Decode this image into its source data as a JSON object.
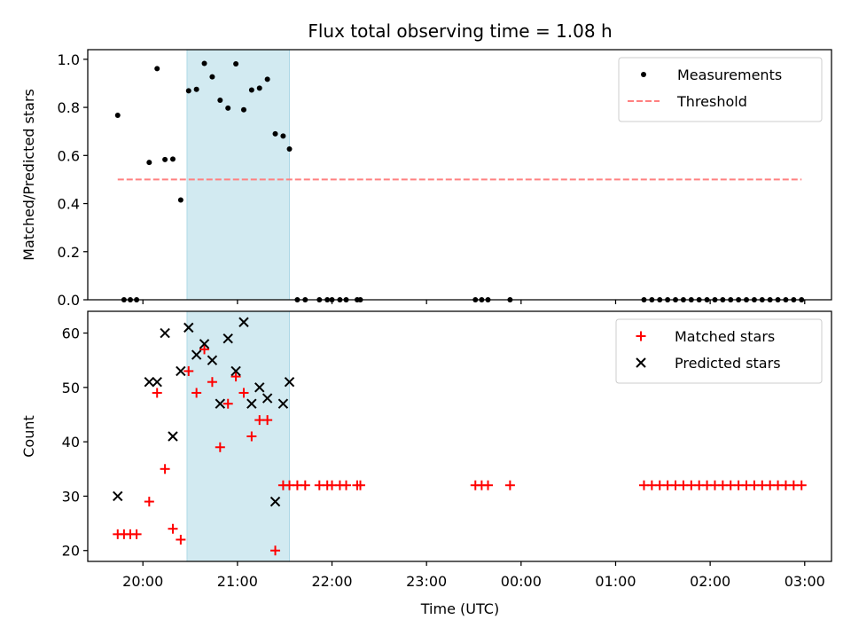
{
  "chart_data": {
    "title": "Flux total observing time = 1.08 h",
    "xlabel": "Time (UTC)",
    "x_ticks": [
      "20:00",
      "21:00",
      "22:00",
      "23:00",
      "00:00",
      "01:00",
      "02:00",
      "03:00"
    ],
    "x_range": [
      "19:25",
      "03:17"
    ],
    "observing_window": [
      "20:28",
      "21:33"
    ],
    "panels": [
      {
        "type": "scatter",
        "ylabel": "Matched/Predicted stars",
        "ylim": [
          0,
          1.04
        ],
        "y_ticks": [
          "0.0",
          "0.2",
          "0.4",
          "0.6",
          "0.8",
          "1.0"
        ],
        "legend_position": "top-right",
        "series": [
          {
            "name": "Measurements",
            "marker": "dot",
            "color": "#000000",
            "points": [
              [
                "19:44",
                0.767
              ],
              [
                "19:48",
                0
              ],
              [
                "19:52",
                0
              ],
              [
                "19:56",
                0
              ],
              [
                "20:04",
                0.571
              ],
              [
                "20:09",
                0.961
              ],
              [
                "20:14",
                0.583
              ],
              [
                "20:19",
                0.585
              ],
              [
                "20:24",
                0.415
              ],
              [
                "20:29",
                0.869
              ],
              [
                "20:34",
                0.875
              ],
              [
                "20:39",
                0.983
              ],
              [
                "20:44",
                0.927
              ],
              [
                "20:49",
                0.83
              ],
              [
                "20:54",
                0.797
              ],
              [
                "20:59",
                0.981
              ],
              [
                "21:04",
                0.79
              ],
              [
                "21:09",
                0.872
              ],
              [
                "21:14",
                0.88
              ],
              [
                "21:19",
                0.917
              ],
              [
                "21:24",
                0.69
              ],
              [
                "21:29",
                0.681
              ],
              [
                "21:33",
                0.627
              ],
              [
                "21:38",
                0
              ],
              [
                "21:43",
                0
              ],
              [
                "21:52",
                0
              ],
              [
                "21:57",
                0
              ],
              [
                "22:00",
                0
              ],
              [
                "22:05",
                0
              ],
              [
                "22:09",
                0
              ],
              [
                "22:16",
                0
              ],
              [
                "22:18",
                0
              ],
              [
                "23:31",
                0
              ],
              [
                "23:35",
                0
              ],
              [
                "23:39",
                0
              ],
              [
                "23:53",
                0
              ],
              [
                "01:18",
                0
              ],
              [
                "01:23",
                0
              ],
              [
                "01:28",
                0
              ],
              [
                "01:33",
                0
              ],
              [
                "01:38",
                0
              ],
              [
                "01:43",
                0
              ],
              [
                "01:48",
                0
              ],
              [
                "01:53",
                0
              ],
              [
                "01:58",
                0
              ],
              [
                "02:03",
                0
              ],
              [
                "02:08",
                0
              ],
              [
                "02:13",
                0
              ],
              [
                "02:18",
                0
              ],
              [
                "02:23",
                0
              ],
              [
                "02:28",
                0
              ],
              [
                "02:33",
                0
              ],
              [
                "02:38",
                0
              ],
              [
                "02:43",
                0
              ],
              [
                "02:48",
                0
              ],
              [
                "02:53",
                0
              ],
              [
                "02:58",
                0
              ]
            ]
          },
          {
            "name": "Threshold",
            "style": "dashed-line",
            "color": "#ff8080",
            "points": [
              [
                "19:44",
                0.5
              ],
              [
                "02:58",
                0.5
              ]
            ]
          }
        ]
      },
      {
        "type": "scatter",
        "ylabel": "Count",
        "ylim": [
          18,
          64
        ],
        "y_ticks": [
          "20",
          "30",
          "40",
          "50",
          "60"
        ],
        "legend_position": "top-right",
        "series": [
          {
            "name": "Matched stars",
            "marker": "plus",
            "color": "#ff0000",
            "points": [
              [
                "19:44",
                23
              ],
              [
                "19:48",
                23
              ],
              [
                "19:52",
                23
              ],
              [
                "19:56",
                23
              ],
              [
                "20:04",
                29
              ],
              [
                "20:09",
                49
              ],
              [
                "20:14",
                35
              ],
              [
                "20:19",
                24
              ],
              [
                "20:24",
                22
              ],
              [
                "20:29",
                53
              ],
              [
                "20:34",
                49
              ],
              [
                "20:39",
                57
              ],
              [
                "20:44",
                51
              ],
              [
                "20:49",
                39
              ],
              [
                "20:54",
                47
              ],
              [
                "20:59",
                52
              ],
              [
                "21:04",
                49
              ],
              [
                "21:09",
                41
              ],
              [
                "21:14",
                44
              ],
              [
                "21:19",
                44
              ],
              [
                "21:24",
                20
              ],
              [
                "21:29",
                32
              ],
              [
                "21:33",
                32
              ],
              [
                "21:38",
                32
              ],
              [
                "21:43",
                32
              ],
              [
                "21:52",
                32
              ],
              [
                "21:57",
                32
              ],
              [
                "22:00",
                32
              ],
              [
                "22:05",
                32
              ],
              [
                "22:09",
                32
              ],
              [
                "22:16",
                32
              ],
              [
                "22:18",
                32
              ],
              [
                "23:31",
                32
              ],
              [
                "23:35",
                32
              ],
              [
                "23:39",
                32
              ],
              [
                "23:53",
                32
              ],
              [
                "01:18",
                32
              ],
              [
                "01:23",
                32
              ],
              [
                "01:28",
                32
              ],
              [
                "01:33",
                32
              ],
              [
                "01:38",
                32
              ],
              [
                "01:43",
                32
              ],
              [
                "01:48",
                32
              ],
              [
                "01:53",
                32
              ],
              [
                "01:58",
                32
              ],
              [
                "02:03",
                32
              ],
              [
                "02:08",
                32
              ],
              [
                "02:13",
                32
              ],
              [
                "02:18",
                32
              ],
              [
                "02:23",
                32
              ],
              [
                "02:28",
                32
              ],
              [
                "02:33",
                32
              ],
              [
                "02:38",
                32
              ],
              [
                "02:43",
                32
              ],
              [
                "02:48",
                32
              ],
              [
                "02:53",
                32
              ],
              [
                "02:58",
                32
              ]
            ]
          },
          {
            "name": "Predicted stars",
            "marker": "x",
            "color": "#000000",
            "points": [
              [
                "19:44",
                30
              ],
              [
                "20:04",
                51
              ],
              [
                "20:09",
                51
              ],
              [
                "20:14",
                60
              ],
              [
                "20:19",
                41
              ],
              [
                "20:24",
                53
              ],
              [
                "20:29",
                61
              ],
              [
                "20:34",
                56
              ],
              [
                "20:39",
                58
              ],
              [
                "20:44",
                55
              ],
              [
                "20:49",
                47
              ],
              [
                "20:54",
                59
              ],
              [
                "20:59",
                53
              ],
              [
                "21:04",
                62
              ],
              [
                "21:09",
                47
              ],
              [
                "21:14",
                50
              ],
              [
                "21:19",
                48
              ],
              [
                "21:24",
                29
              ],
              [
                "21:29",
                47
              ],
              [
                "21:33",
                51
              ]
            ]
          }
        ]
      }
    ],
    "colors": {
      "observing_window": "#add8e6"
    }
  }
}
